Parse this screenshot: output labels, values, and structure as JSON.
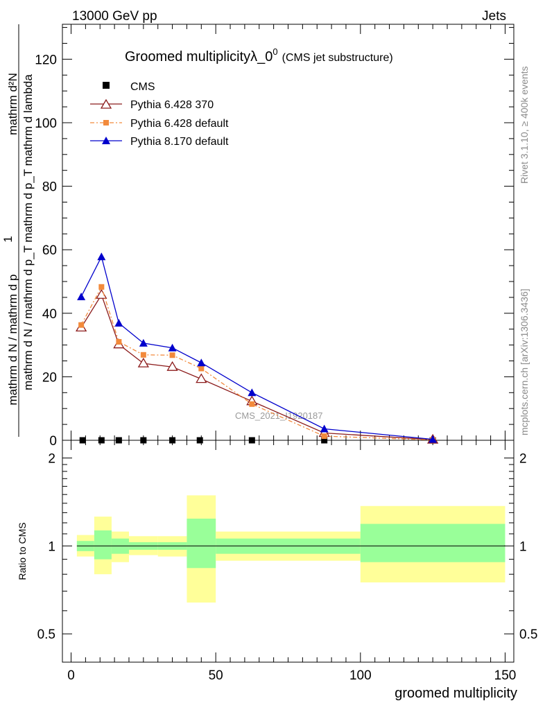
{
  "header": {
    "left": "13000 GeV pp",
    "right": "Jets"
  },
  "side": {
    "rivet": "Rivet 3.1.10, ≥ 400k events",
    "mcplots": "mcplots.cern.ch [arXiv:1306.3436]"
  },
  "title": {
    "main": "Groomed multiplicityλ_0",
    "sup": "0",
    "sub": "(CMS jet substructure)"
  },
  "watermark": "CMS_2021_I1920187",
  "ylabel": {
    "num": "mathrm d²N",
    "den": "mathrm d p_T mathrm d lambda",
    "pre_num": "1",
    "pre_den": "mathrm d N / mathrm d p",
    "full_den": "mathrm d N / mathrm d p_T mathrm d p_T mathrm d lambda"
  },
  "ratio_ylabel": "Ratio to CMS",
  "xlabel": "groomed multiplicity",
  "legend": [
    {
      "label": "CMS",
      "color": "#000000",
      "marker": "square-filled"
    },
    {
      "label": "Pythia 6.428 370",
      "color": "#8b1a1a",
      "marker": "triangle-open"
    },
    {
      "label": "Pythia 6.428 default",
      "color": "#f28a3c",
      "marker": "square-filled"
    },
    {
      "label": "Pythia 8.170 default",
      "color": "#0000cc",
      "marker": "triangle-filled"
    }
  ],
  "chart_data": {
    "type": "line",
    "xlim": [
      -3,
      153
    ],
    "ylim": [
      0,
      131
    ],
    "x_ticks": [
      0,
      50,
      100,
      150
    ],
    "y_ticks": [
      0,
      20,
      40,
      60,
      80,
      100,
      120
    ],
    "ratio_ylim_log": [
      0.4,
      2.3
    ],
    "ratio_y_ticks": [
      0.5,
      1,
      2
    ],
    "bins": [
      [
        2,
        8
      ],
      [
        8,
        14
      ],
      [
        14,
        20
      ],
      [
        20,
        30
      ],
      [
        30,
        40
      ],
      [
        40,
        50
      ],
      [
        50,
        75
      ],
      [
        75,
        100
      ],
      [
        100,
        150
      ]
    ],
    "series": [
      {
        "name": "CMS",
        "x": [
          4,
          10.5,
          16.5,
          25,
          35,
          44.5,
          62.5,
          87.5,
          125
        ],
        "values": [
          0,
          0,
          0,
          0,
          0,
          0,
          0,
          0,
          0
        ]
      },
      {
        "name": "Pythia 6.428 370",
        "x": [
          3.5,
          10.5,
          16.5,
          25,
          35,
          45,
          62.5,
          87.5,
          125
        ],
        "values": [
          35.5,
          45.8,
          30.2,
          24.2,
          23.1,
          19.3,
          12.3,
          2.3,
          0.2
        ]
      },
      {
        "name": "Pythia 6.428 default",
        "x": [
          3.5,
          10.5,
          16.5,
          25,
          35,
          45,
          62.5,
          87.5,
          125
        ],
        "values": [
          36.3,
          48.3,
          31.0,
          26.9,
          26.8,
          22.6,
          11.4,
          1.3,
          0.1
        ]
      },
      {
        "name": "Pythia 8.170 default",
        "x": [
          3.5,
          10.5,
          16.5,
          25,
          35,
          45,
          62.5,
          87.5,
          125
        ],
        "values": [
          45.2,
          57.8,
          36.9,
          30.6,
          29.1,
          24.4,
          15.0,
          3.6,
          0.3
        ]
      }
    ],
    "ratio_bands": {
      "stat": [
        [
          0.96,
          1.04
        ],
        [
          0.9,
          1.13
        ],
        [
          0.94,
          1.06
        ],
        [
          0.97,
          1.03
        ],
        [
          0.97,
          1.03
        ],
        [
          0.84,
          1.24
        ],
        [
          0.94,
          1.06
        ],
        [
          0.94,
          1.06
        ],
        [
          0.88,
          1.19
        ]
      ],
      "total": [
        [
          0.92,
          1.09
        ],
        [
          0.8,
          1.26
        ],
        [
          0.88,
          1.12
        ],
        [
          0.93,
          1.08
        ],
        [
          0.92,
          1.08
        ],
        [
          0.64,
          1.49
        ],
        [
          0.89,
          1.12
        ],
        [
          0.89,
          1.12
        ],
        [
          0.75,
          1.37
        ]
      ]
    }
  }
}
